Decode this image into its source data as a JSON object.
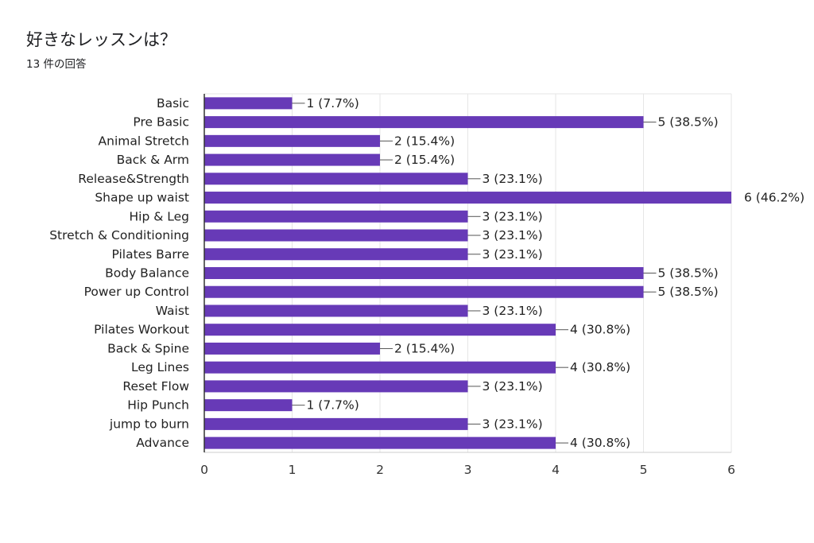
{
  "header": {
    "title": "好きなレッスンは？",
    "response_count": "13 件の回答"
  },
  "colors": {
    "bar": "#673ab7",
    "grid": "#e6e6e6",
    "axis": "#333333"
  },
  "chart_data": {
    "type": "bar",
    "orientation": "horizontal",
    "title": "好きなレッスンは？",
    "categories": [
      "Basic",
      "Pre Basic",
      "Animal Stretch",
      "Back & Arm",
      "Release&Strength",
      "Shape up waist",
      "Hip & Leg",
      "Stretch & Conditioning",
      "Pilates Barre",
      "Body Balance",
      "Power up Control",
      "Waist",
      "Pilates Workout",
      "Back & Spine",
      "Leg Lines",
      "Reset Flow",
      "Hip Punch",
      "jump to burn",
      "Advance"
    ],
    "values": [
      1,
      5,
      2,
      2,
      3,
      6,
      3,
      3,
      3,
      5,
      5,
      3,
      4,
      2,
      4,
      3,
      1,
      3,
      4
    ],
    "data_labels": [
      "1 (7.7%)",
      "5 (38.5%)",
      "2 (15.4%)",
      "2 (15.4%)",
      "3 (23.1%)",
      "6 (46.2%)",
      "3 (23.1%)",
      "3 (23.1%)",
      "3 (23.1%)",
      "5 (38.5%)",
      "5 (38.5%)",
      "3 (23.1%)",
      "4 (30.8%)",
      "2 (15.4%)",
      "4 (30.8%)",
      "3 (23.1%)",
      "1 (7.7%)",
      "3 (23.1%)",
      "4 (30.8%)"
    ],
    "xticks": [
      "0",
      "1",
      "2",
      "3",
      "4",
      "5",
      "6"
    ],
    "xlim": [
      0,
      6
    ],
    "grid": true,
    "legend": false
  }
}
